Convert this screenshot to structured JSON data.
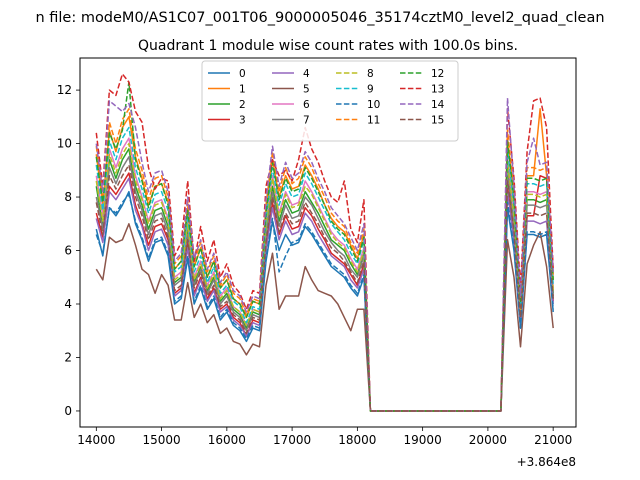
{
  "chart_data": {
    "type": "line",
    "suptitle": "n file: modeM0/AS1C07_001T06_9000005046_35174cztM0_level2_quad_clean",
    "title": "Quadrant 1 module wise count rates with 100.0s bins.",
    "xlabel": "",
    "ylabel": "",
    "x_offset_label": "+3.864e8",
    "xlim": [
      13750,
      21350
    ],
    "ylim": [
      -0.6,
      13.2
    ],
    "xticks": [
      14000,
      15000,
      16000,
      17000,
      18000,
      19000,
      20000,
      21000
    ],
    "yticks": [
      0,
      2,
      4,
      6,
      8,
      10,
      12
    ],
    "grid": false,
    "legend_position": "top-center",
    "legend_columns": 4,
    "x": [
      14000,
      14100,
      14200,
      14300,
      14400,
      14500,
      14600,
      14700,
      14800,
      14900,
      15000,
      15100,
      15200,
      15300,
      15400,
      15500,
      15600,
      15700,
      15800,
      15900,
      16000,
      16100,
      16200,
      16300,
      16400,
      16500,
      16600,
      16700,
      16800,
      16900,
      17000,
      17100,
      17200,
      17300,
      17400,
      17500,
      17600,
      17700,
      17800,
      17900,
      18000,
      18100,
      18200,
      18300,
      20100,
      20200,
      20300,
      20400,
      20500,
      20600,
      20700,
      20800,
      20900,
      21000
    ],
    "series": [
      {
        "name": "0",
        "color": "#1f77b4",
        "dashed": false,
        "values": [
          6.8,
          5.8,
          7.6,
          7.3,
          7.7,
          8.2,
          7.0,
          6.4,
          5.6,
          6.3,
          6.4,
          5.8,
          4.0,
          4.2,
          5.7,
          4.0,
          4.6,
          3.8,
          4.2,
          3.4,
          3.7,
          3.2,
          3.0,
          2.6,
          3.1,
          3.0,
          5.6,
          7.1,
          6.0,
          6.6,
          6.2,
          6.3,
          6.9,
          6.6,
          6.2,
          5.8,
          5.4,
          5.2,
          5.0,
          4.6,
          4.3,
          5.0,
          0.0,
          0.0,
          0.0,
          0.0,
          7.6,
          6.0,
          3.1,
          6.6,
          6.6,
          6.5,
          6.6,
          3.7
        ]
      },
      {
        "name": "1",
        "color": "#ff7f0e",
        "dashed": false,
        "values": [
          9.6,
          7.7,
          10.5,
          9.7,
          10.6,
          11.0,
          9.5,
          8.7,
          7.7,
          8.4,
          8.5,
          7.8,
          5.3,
          5.6,
          7.6,
          5.4,
          6.1,
          5.0,
          5.6,
          4.6,
          4.9,
          4.2,
          4.0,
          3.5,
          4.1,
          4.0,
          7.5,
          9.4,
          8.0,
          8.8,
          8.3,
          8.4,
          9.2,
          8.8,
          8.3,
          7.7,
          7.2,
          6.9,
          6.7,
          6.2,
          5.7,
          6.6,
          0.0,
          0.0,
          0.0,
          0.0,
          10.2,
          8.0,
          4.1,
          8.8,
          8.8,
          11.3,
          8.8,
          4.9
        ]
      },
      {
        "name": "2",
        "color": "#2ca02c",
        "dashed": false,
        "values": [
          8.4,
          6.9,
          9.4,
          8.7,
          9.4,
          9.8,
          8.4,
          7.7,
          6.8,
          7.5,
          7.6,
          6.9,
          4.8,
          5.0,
          6.8,
          4.8,
          5.4,
          4.5,
          5.0,
          4.1,
          4.4,
          3.8,
          3.6,
          3.1,
          3.7,
          3.6,
          6.7,
          8.4,
          7.1,
          7.9,
          7.4,
          7.5,
          8.2,
          7.8,
          7.4,
          6.9,
          6.4,
          6.2,
          6.0,
          5.5,
          5.1,
          5.9,
          0.0,
          0.0,
          0.0,
          0.0,
          9.1,
          7.1,
          3.7,
          7.9,
          7.9,
          7.8,
          7.9,
          4.4
        ]
      },
      {
        "name": "3",
        "color": "#d62728",
        "dashed": false,
        "values": [
          7.4,
          6.5,
          8.4,
          8.1,
          8.5,
          8.9,
          7.7,
          7.0,
          6.2,
          6.9,
          7.0,
          6.4,
          4.4,
          4.6,
          6.3,
          4.4,
          5.0,
          4.2,
          4.6,
          3.8,
          4.0,
          3.5,
          3.3,
          2.8,
          3.4,
          3.3,
          6.2,
          7.8,
          6.6,
          7.3,
          6.8,
          6.9,
          7.6,
          7.3,
          6.8,
          6.4,
          5.9,
          5.7,
          5.5,
          5.1,
          4.7,
          5.5,
          0.0,
          0.0,
          0.0,
          0.0,
          8.4,
          6.6,
          3.4,
          7.3,
          7.3,
          8.8,
          8.7,
          4.1
        ]
      },
      {
        "name": "4",
        "color": "#9467bd",
        "dashed": false,
        "values": [
          7.2,
          6.3,
          8.2,
          7.9,
          8.3,
          8.7,
          7.5,
          6.9,
          6.0,
          6.7,
          6.8,
          6.2,
          4.3,
          4.5,
          6.1,
          4.3,
          4.9,
          4.1,
          4.5,
          3.7,
          3.9,
          3.4,
          3.2,
          2.8,
          3.3,
          3.2,
          6.0,
          7.6,
          6.4,
          7.1,
          6.6,
          6.7,
          7.4,
          7.1,
          6.6,
          6.2,
          5.8,
          5.6,
          5.4,
          4.9,
          4.6,
          5.3,
          0.0,
          0.0,
          0.0,
          0.0,
          8.2,
          6.4,
          3.3,
          7.1,
          7.1,
          7.0,
          7.1,
          4.0
        ]
      },
      {
        "name": "5",
        "color": "#8c564b",
        "dashed": false,
        "values": [
          5.3,
          4.9,
          6.5,
          6.3,
          6.4,
          7.0,
          6.2,
          5.3,
          5.1,
          4.4,
          5.1,
          4.7,
          3.4,
          3.4,
          4.8,
          3.5,
          4.0,
          3.3,
          3.6,
          2.9,
          3.1,
          2.6,
          2.5,
          2.1,
          2.5,
          2.4,
          4.7,
          5.9,
          3.8,
          4.3,
          4.3,
          4.3,
          5.4,
          4.9,
          4.5,
          4.4,
          4.3,
          4.0,
          3.5,
          3.0,
          3.8,
          3.8,
          0.0,
          0.0,
          0.0,
          0.0,
          6.4,
          5.0,
          2.4,
          5.5,
          6.2,
          6.7,
          5.4,
          3.1
        ]
      },
      {
        "name": "6",
        "color": "#e377c2",
        "dashed": false,
        "values": [
          8.8,
          7.3,
          9.8,
          9.1,
          9.8,
          10.2,
          8.8,
          8.0,
          7.1,
          7.8,
          7.9,
          7.2,
          5.0,
          5.2,
          7.1,
          5.0,
          5.6,
          4.7,
          5.2,
          4.3,
          4.6,
          3.9,
          3.7,
          3.2,
          3.8,
          3.7,
          7.0,
          8.8,
          7.4,
          8.2,
          7.7,
          7.8,
          8.6,
          8.2,
          7.7,
          7.2,
          6.7,
          6.4,
          6.2,
          5.7,
          5.3,
          6.1,
          0.0,
          0.0,
          0.0,
          0.0,
          9.5,
          7.4,
          3.8,
          8.2,
          8.2,
          8.1,
          8.2,
          4.6
        ]
      },
      {
        "name": "7",
        "color": "#7f7f7f",
        "dashed": false,
        "values": [
          8.0,
          6.8,
          9.1,
          8.5,
          9.1,
          9.5,
          8.2,
          7.5,
          6.6,
          7.3,
          7.4,
          6.7,
          4.7,
          4.9,
          6.6,
          4.7,
          5.3,
          4.4,
          4.9,
          4.0,
          4.3,
          3.7,
          3.5,
          3.0,
          3.6,
          3.5,
          6.5,
          8.2,
          6.9,
          7.7,
          7.2,
          7.3,
          8.0,
          7.7,
          7.2,
          6.7,
          6.3,
          6.0,
          5.8,
          5.3,
          5.0,
          5.8,
          0.0,
          0.0,
          0.0,
          0.0,
          8.9,
          6.9,
          3.6,
          7.7,
          7.7,
          7.6,
          7.7,
          4.3
        ]
      },
      {
        "name": "8",
        "color": "#bcbd22",
        "dashed": true,
        "values": [
          8.6,
          7.1,
          9.6,
          8.9,
          9.6,
          10.0,
          8.6,
          7.9,
          7.0,
          7.7,
          7.8,
          7.1,
          4.9,
          5.1,
          7.0,
          4.9,
          5.5,
          4.6,
          5.1,
          4.2,
          4.5,
          3.9,
          3.7,
          3.2,
          3.8,
          3.7,
          6.9,
          8.7,
          7.3,
          8.1,
          7.6,
          7.7,
          8.4,
          8.1,
          7.6,
          7.1,
          6.6,
          6.3,
          6.1,
          5.6,
          5.2,
          6.0,
          0.0,
          0.0,
          0.0,
          0.0,
          9.3,
          7.3,
          3.8,
          8.1,
          8.1,
          8.0,
          8.1,
          4.5
        ]
      },
      {
        "name": "9",
        "color": "#17becf",
        "dashed": true,
        "values": [
          9.2,
          7.5,
          10.1,
          9.4,
          10.2,
          10.6,
          9.1,
          8.3,
          7.4,
          8.1,
          8.2,
          7.5,
          5.2,
          5.4,
          7.3,
          5.2,
          5.8,
          4.8,
          5.4,
          4.4,
          4.7,
          4.1,
          3.9,
          3.3,
          3.9,
          3.8,
          7.2,
          9.1,
          7.7,
          8.5,
          8.0,
          8.1,
          8.9,
          8.5,
          8.0,
          7.5,
          7.0,
          6.7,
          6.4,
          5.9,
          5.5,
          6.4,
          0.0,
          0.0,
          0.0,
          0.0,
          9.8,
          7.7,
          4.0,
          8.5,
          8.5,
          8.4,
          8.5,
          4.7
        ]
      },
      {
        "name": "10",
        "color": "#1f77b4",
        "dashed": true,
        "values": [
          6.6,
          5.9,
          7.6,
          7.4,
          7.8,
          8.1,
          7.1,
          6.5,
          5.7,
          6.4,
          6.5,
          5.9,
          4.1,
          4.3,
          5.8,
          4.1,
          4.7,
          3.9,
          4.3,
          3.5,
          3.8,
          3.3,
          3.1,
          2.7,
          3.2,
          3.1,
          5.7,
          7.2,
          5.2,
          5.8,
          6.3,
          6.4,
          7.0,
          6.7,
          6.3,
          5.9,
          5.5,
          5.3,
          5.1,
          4.7,
          4.4,
          5.1,
          0.0,
          0.0,
          0.0,
          0.0,
          7.8,
          6.1,
          3.1,
          6.7,
          6.7,
          6.6,
          6.7,
          3.8
        ]
      },
      {
        "name": "11",
        "color": "#ff7f0e",
        "dashed": true,
        "values": [
          9.9,
          8.0,
          10.8,
          10.0,
          10.9,
          11.3,
          9.8,
          9.0,
          7.9,
          8.7,
          8.8,
          8.0,
          5.5,
          5.8,
          7.8,
          5.6,
          6.3,
          5.2,
          5.8,
          4.7,
          5.1,
          4.4,
          4.2,
          3.6,
          4.2,
          4.1,
          7.7,
          9.7,
          8.2,
          9.1,
          8.5,
          8.7,
          9.5,
          9.1,
          8.5,
          8.0,
          7.4,
          7.1,
          6.9,
          6.3,
          5.9,
          6.8,
          0.0,
          0.0,
          0.0,
          0.0,
          10.5,
          8.2,
          4.2,
          9.1,
          9.1,
          9.0,
          9.1,
          5.1
        ]
      },
      {
        "name": "12",
        "color": "#2ca02c",
        "dashed": true,
        "values": [
          9.5,
          7.8,
          10.4,
          9.8,
          10.5,
          12.3,
          9.4,
          8.6,
          7.6,
          8.4,
          8.5,
          7.7,
          5.3,
          5.6,
          7.5,
          5.4,
          6.1,
          5.0,
          5.6,
          4.6,
          4.9,
          4.2,
          4.0,
          3.5,
          4.1,
          4.0,
          7.4,
          9.3,
          7.9,
          8.7,
          8.2,
          8.3,
          9.1,
          8.7,
          8.2,
          7.7,
          7.1,
          6.8,
          6.6,
          6.1,
          5.6,
          6.5,
          0.0,
          0.0,
          0.0,
          0.0,
          10.1,
          7.9,
          4.1,
          8.7,
          8.7,
          8.6,
          8.7,
          4.9
        ]
      },
      {
        "name": "13",
        "color": "#d62728",
        "dashed": true,
        "values": [
          10.4,
          8.4,
          12.0,
          11.8,
          12.6,
          12.3,
          11.2,
          10.8,
          9.1,
          8.3,
          8.7,
          8.6,
          5.8,
          6.3,
          8.6,
          5.6,
          6.9,
          5.6,
          6.4,
          5.0,
          5.5,
          4.7,
          4.4,
          3.8,
          4.5,
          4.4,
          8.4,
          9.4,
          8.8,
          9.0,
          8.6,
          9.4,
          10.6,
          9.8,
          9.3,
          8.6,
          8.0,
          7.8,
          8.6,
          6.8,
          6.3,
          7.9,
          0.0,
          0.0,
          0.0,
          0.0,
          11.3,
          8.7,
          4.6,
          9.7,
          11.6,
          11.7,
          10.6,
          5.3
        ]
      },
      {
        "name": "14",
        "color": "#9467bd",
        "dashed": true,
        "values": [
          10.0,
          8.2,
          11.6,
          11.4,
          11.2,
          11.5,
          10.6,
          9.3,
          8.2,
          8.9,
          9.0,
          8.2,
          5.6,
          5.9,
          8.0,
          5.7,
          6.4,
          5.3,
          5.9,
          4.8,
          5.2,
          4.5,
          4.3,
          3.7,
          4.3,
          4.2,
          7.9,
          9.9,
          8.4,
          9.3,
          8.7,
          8.9,
          9.7,
          9.3,
          8.7,
          8.2,
          7.6,
          7.3,
          7.0,
          6.5,
          6.0,
          7.0,
          0.0,
          0.0,
          0.0,
          0.0,
          11.7,
          8.4,
          4.3,
          9.3,
          10.2,
          9.2,
          9.3,
          5.2
        ]
      },
      {
        "name": "15",
        "color": "#8c564b",
        "dashed": true,
        "values": [
          7.8,
          6.6,
          8.8,
          8.3,
          8.8,
          9.2,
          8.0,
          7.3,
          6.4,
          7.1,
          7.2,
          6.5,
          4.5,
          4.7,
          6.4,
          4.6,
          5.2,
          4.3,
          4.7,
          3.9,
          4.1,
          3.6,
          3.4,
          2.9,
          3.5,
          3.4,
          6.3,
          8.0,
          6.7,
          7.4,
          7.0,
          7.1,
          7.8,
          7.4,
          7.0,
          6.5,
          6.1,
          5.9,
          5.6,
          5.2,
          4.8,
          5.6,
          0.0,
          0.0,
          0.0,
          0.0,
          8.6,
          6.7,
          3.5,
          7.4,
          7.4,
          7.3,
          7.4,
          4.2
        ]
      }
    ]
  }
}
